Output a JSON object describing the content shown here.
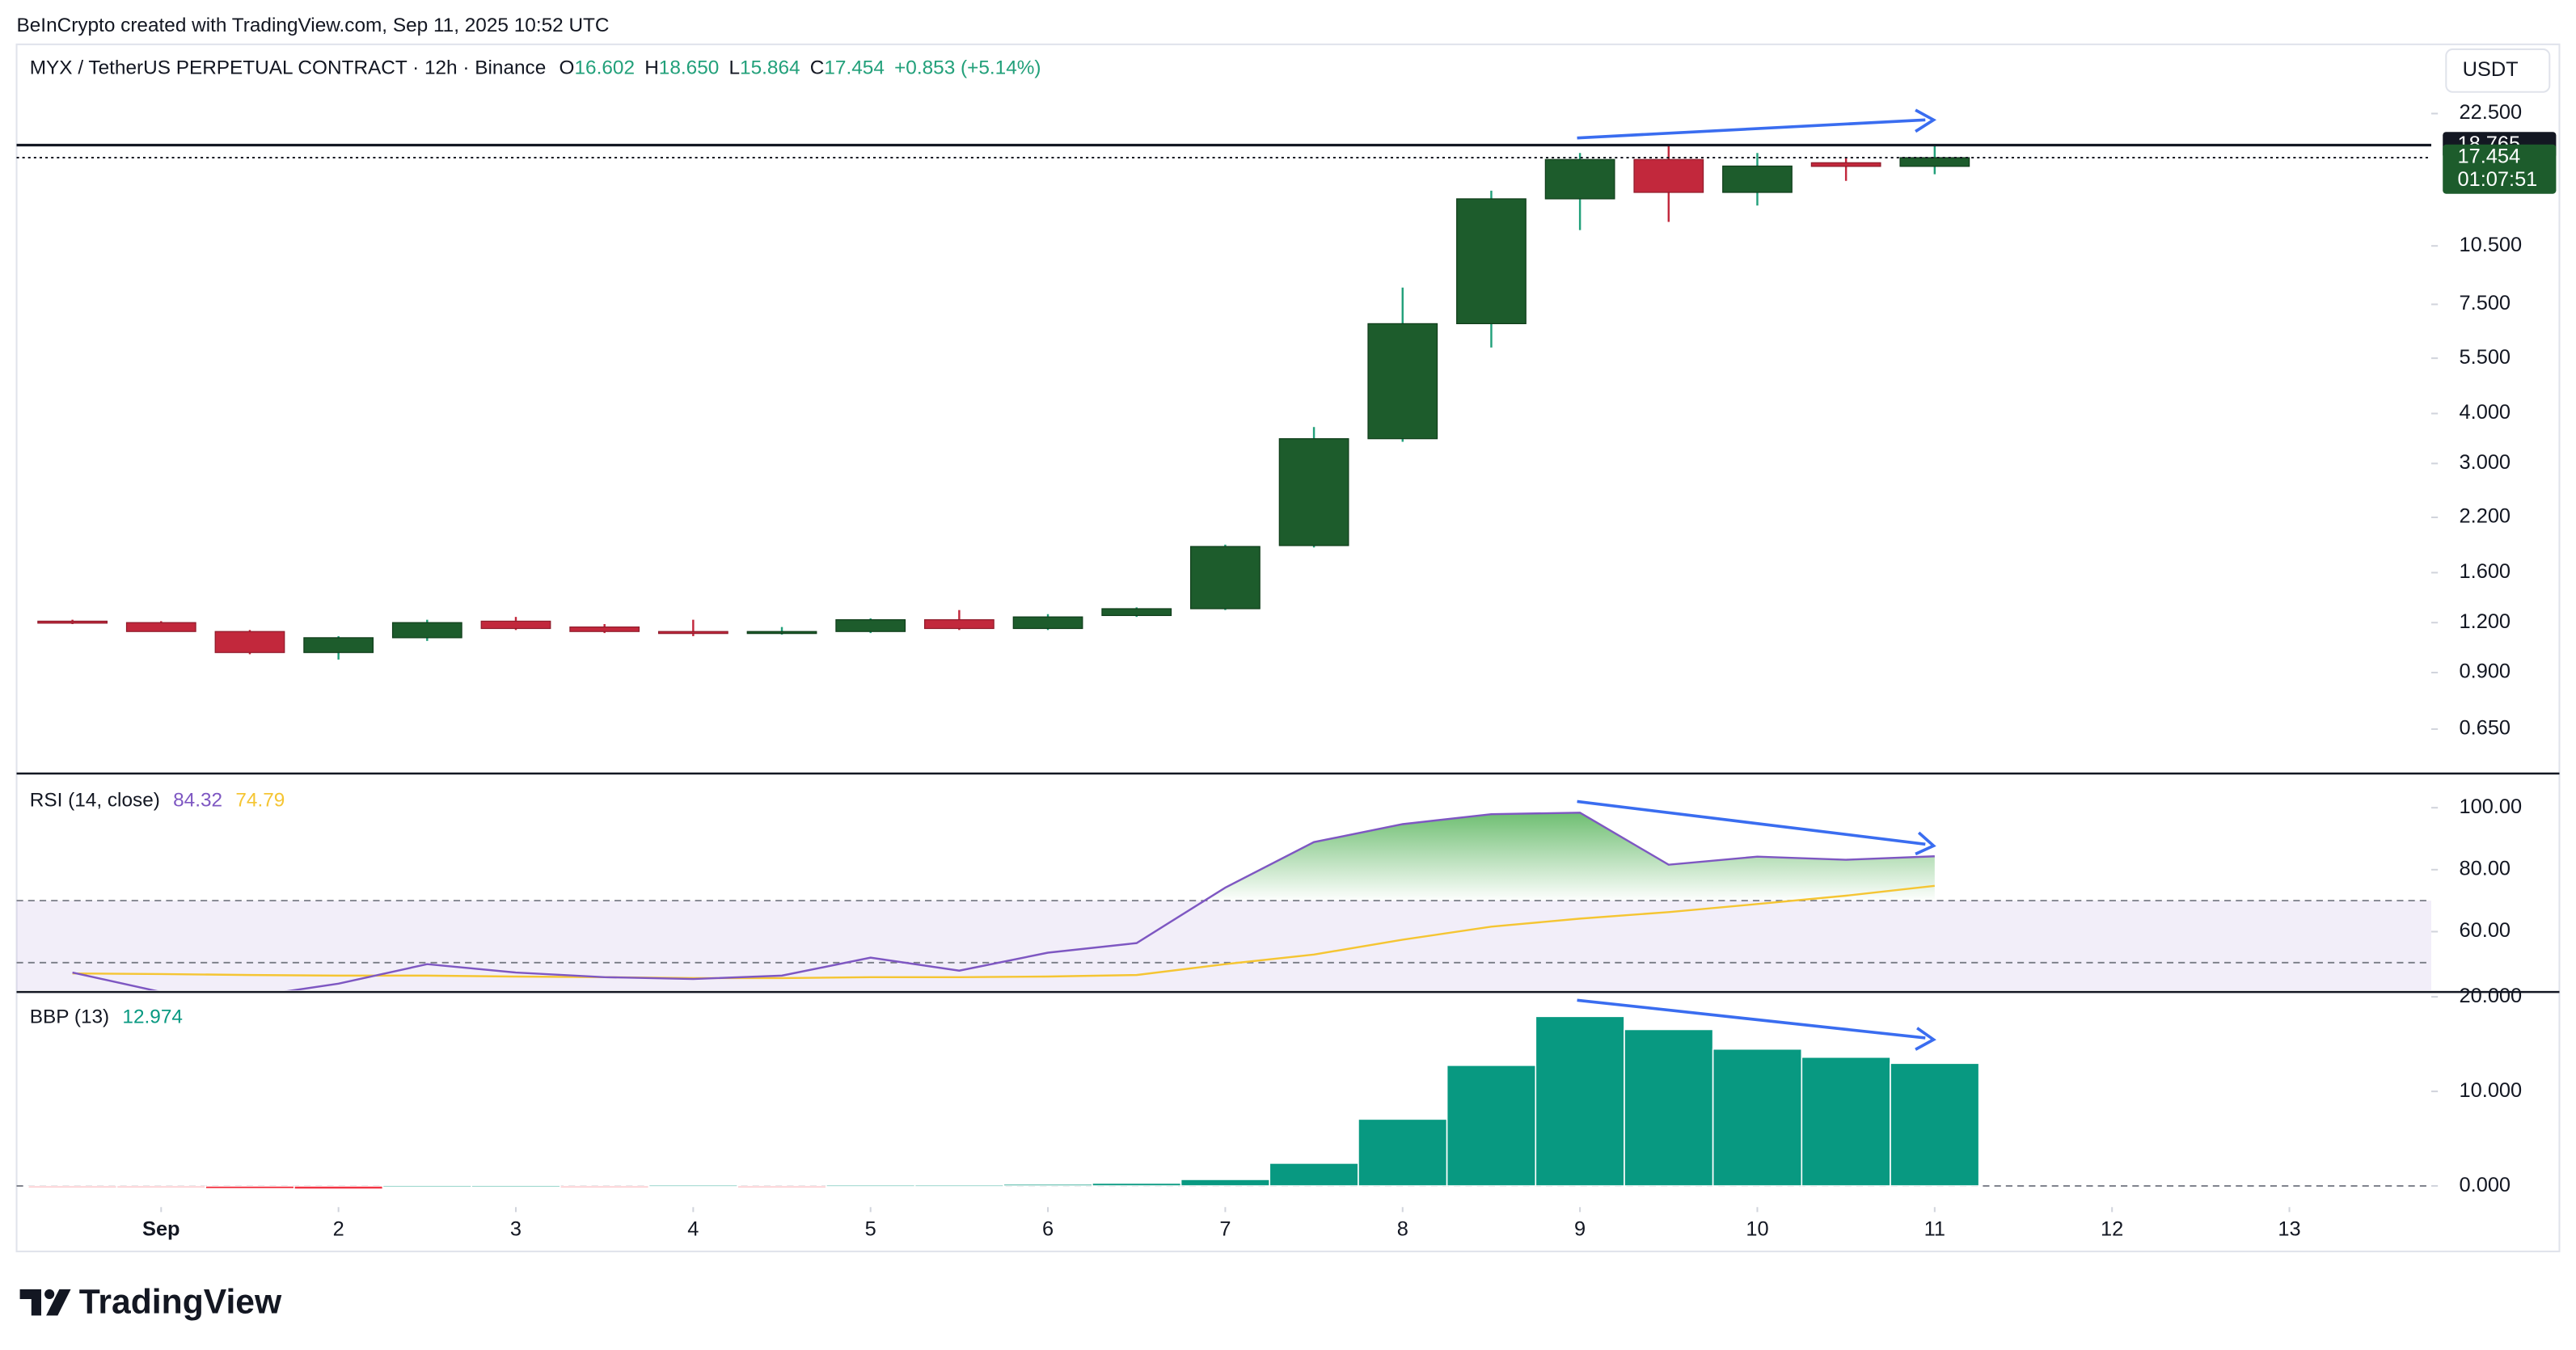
{
  "header": {
    "text": "BeInCrypto created with TradingView.com, Sep 11, 2025 10:52 UTC"
  },
  "footer": {
    "brand": "TradingView"
  },
  "chart_data": [
    {
      "type": "candlestick",
      "title": "MYX / TetherUS PERPETUAL CONTRACT · 12h · Binance",
      "ohlc_legend": [
        {
          "key": "O",
          "value": "16.602"
        },
        {
          "key": "H",
          "value": "18.650"
        },
        {
          "key": "L",
          "value": "15.864"
        },
        {
          "key": "C",
          "value": "17.454"
        }
      ],
      "change": "+0.853 (+5.14%)",
      "currency": "USDT",
      "x": [
        0.5,
        1,
        1.5,
        2,
        2.5,
        3,
        3.5,
        4,
        4.5,
        5,
        5.5,
        6,
        6.5,
        7,
        7.5,
        8,
        8.5,
        9,
        9.5,
        10,
        10.5,
        11
      ],
      "open": [
        1.21,
        1.2,
        1.14,
        1.01,
        1.1,
        1.21,
        1.17,
        1.14,
        1.13,
        1.14,
        1.22,
        1.16,
        1.25,
        1.3,
        1.87,
        3.46,
        6.71,
        13.77,
        17.27,
        14.29,
        16.95,
        16.602
      ],
      "high": [
        1.22,
        1.21,
        1.15,
        1.11,
        1.22,
        1.24,
        1.19,
        1.22,
        1.17,
        1.23,
        1.29,
        1.26,
        1.31,
        1.88,
        3.7,
        8.26,
        14.43,
        17.93,
        18.65,
        17.93,
        17.5,
        18.65
      ],
      "low": [
        1.19,
        1.15,
        1.0,
        0.97,
        1.08,
        1.15,
        1.13,
        1.11,
        1.12,
        1.13,
        1.15,
        1.15,
        1.24,
        1.29,
        1.85,
        3.4,
        5.85,
        11.5,
        12.06,
        13.25,
        15.27,
        15.864
      ],
      "close": [
        1.2,
        1.14,
        1.01,
        1.1,
        1.2,
        1.16,
        1.14,
        1.13,
        1.14,
        1.22,
        1.16,
        1.24,
        1.3,
        1.86,
        3.46,
        6.71,
        13.77,
        17.27,
        14.29,
        16.63,
        16.6,
        17.454
      ],
      "up_color": "#1d5c2c",
      "up_wick_color": "#22a07a",
      "down_color": "#c2283c",
      "log_scale": true,
      "ylim": [
        0.508,
        33.2
      ],
      "yticks": [
        {
          "value": 0.65,
          "label": "0.650"
        },
        {
          "value": 0.9,
          "label": "0.900"
        },
        {
          "value": 1.2,
          "label": "1.200"
        },
        {
          "value": 1.6,
          "label": "1.600"
        },
        {
          "value": 2.2,
          "label": "2.200"
        },
        {
          "value": 3,
          "label": "3.000"
        },
        {
          "value": 4,
          "label": "4.000"
        },
        {
          "value": 5.5,
          "label": "5.500"
        },
        {
          "value": 7.5,
          "label": "7.500"
        },
        {
          "value": 10.5,
          "label": "10.500"
        },
        {
          "value": 22.5,
          "label": "22.500"
        }
      ],
      "hlines": [
        18.765
      ],
      "countdown": "01:07:51",
      "grid": false
    },
    {
      "type": "line",
      "title": "RSI (14, close)",
      "x": [
        0.5,
        1,
        1.5,
        2,
        2.5,
        3,
        3.5,
        4,
        4.5,
        5,
        5.5,
        6,
        6.5,
        7,
        7.5,
        8,
        8.5,
        9,
        9.5,
        10,
        10.5,
        11
      ],
      "series": [
        {
          "color": "#7e57c2",
          "values": [
            46.8,
            40.5,
            39.0,
            43.2,
            49.5,
            46.8,
            45.3,
            44.7,
            45.8,
            51.6,
            47.4,
            53.2,
            56.3,
            74.2,
            88.9,
            94.7,
            97.9,
            98.4,
            81.6,
            84.2,
            83.2,
            84.32
          ]
        },
        {
          "color": "#f5c533",
          "values": [
            46.5,
            46.3,
            46.0,
            45.8,
            45.8,
            45.5,
            45.3,
            45.0,
            45.0,
            45.3,
            45.3,
            45.5,
            46.0,
            49.5,
            52.6,
            57.4,
            61.6,
            64.2,
            66.3,
            68.9,
            71.6,
            74.79
          ]
        }
      ],
      "ylim": [
        41.05,
        110.5
      ],
      "yticks": [
        {
          "value": 60,
          "label": "60.00"
        },
        {
          "value": 80,
          "label": "80.00"
        },
        {
          "value": 100,
          "label": "100.00"
        }
      ],
      "levels": [
        70,
        50,
        30
      ],
      "band": [
        30,
        70
      ],
      "band_color": "#7e57c2",
      "overbought_color": "#4caf50",
      "grid": false
    },
    {
      "type": "bar",
      "title": "BBP (13)",
      "x": [
        0.5,
        1,
        1.5,
        2,
        2.5,
        3,
        3.5,
        4,
        4.5,
        5,
        5.5,
        6,
        6.5,
        7,
        7.5,
        8,
        8.5,
        9,
        9.5,
        10,
        10.5,
        11
      ],
      "values": [
        -0.05,
        -0.1,
        -0.3,
        -0.35,
        0.05,
        0.05,
        -0.05,
        0.1,
        -0.05,
        0.1,
        0.1,
        0.2,
        0.3,
        0.69,
        2.41,
        7.07,
        12.76,
        17.93,
        16.55,
        14.48,
        13.62,
        12.974
      ],
      "up_color": "#089981",
      "down_color": "#f23645",
      "ylim": [
        -2.24,
        20.34
      ],
      "yticks": [
        {
          "value": 0,
          "label": "0.000"
        },
        {
          "value": 10,
          "label": "10.000"
        },
        {
          "value": 20,
          "label": "20.000"
        }
      ],
      "zero_line": true,
      "xlim": [
        0.185,
        13.8
      ],
      "xticks": [
        {
          "value": 1,
          "label": "Sep"
        },
        2,
        3,
        4,
        5,
        6,
        7,
        8,
        9,
        10,
        11,
        12,
        13
      ],
      "grid": false
    }
  ]
}
